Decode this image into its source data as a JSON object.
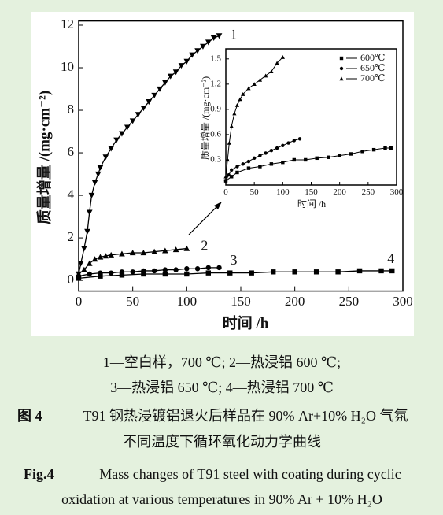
{
  "chart_data": [
    {
      "type": "line",
      "xlabel": "时间 /h",
      "ylabel": "质量增量 /(mg·cm⁻²)",
      "xlim": [
        0,
        300
      ],
      "ylim": [
        -0.5,
        12.2
      ],
      "xticks": [
        0,
        50,
        100,
        150,
        200,
        250,
        300
      ],
      "yticks": [
        0,
        2,
        4,
        6,
        8,
        10,
        12
      ],
      "series": [
        {
          "name": "1",
          "color": "#000000",
          "marker": "triangle-down",
          "x": [
            0,
            2,
            5,
            8,
            10,
            12,
            15,
            18,
            20,
            25,
            30,
            35,
            40,
            45,
            50,
            55,
            60,
            65,
            70,
            75,
            80,
            85,
            90,
            95,
            100,
            105,
            110,
            115,
            120,
            125,
            130
          ],
          "values": [
            0.3,
            0.8,
            1.5,
            2.3,
            3.2,
            4.0,
            4.6,
            5.0,
            5.3,
            5.8,
            6.2,
            6.6,
            6.9,
            7.2,
            7.5,
            7.8,
            8.1,
            8.4,
            8.7,
            9.0,
            9.3,
            9.6,
            9.8,
            10.1,
            10.3,
            10.6,
            10.8,
            11.0,
            11.2,
            11.4,
            11.5
          ]
        },
        {
          "name": "2",
          "color": "#000000",
          "marker": "triangle-up",
          "x": [
            0,
            5,
            10,
            15,
            20,
            25,
            30,
            40,
            50,
            60,
            70,
            80,
            90,
            100
          ],
          "values": [
            0.3,
            0.5,
            0.8,
            1.0,
            1.1,
            1.15,
            1.2,
            1.25,
            1.3,
            1.3,
            1.35,
            1.4,
            1.45,
            1.5
          ]
        },
        {
          "name": "3",
          "color": "#000000",
          "marker": "circle",
          "x": [
            0,
            10,
            20,
            30,
            40,
            50,
            60,
            70,
            80,
            90,
            100,
            110,
            120,
            130
          ],
          "values": [
            0.2,
            0.3,
            0.35,
            0.35,
            0.4,
            0.4,
            0.45,
            0.45,
            0.5,
            0.5,
            0.55,
            0.55,
            0.6,
            0.6
          ]
        },
        {
          "name": "4",
          "color": "#000000",
          "marker": "square",
          "x": [
            0,
            20,
            40,
            60,
            80,
            100,
            120,
            140,
            160,
            180,
            200,
            220,
            240,
            260,
            280,
            290
          ],
          "values": [
            0.1,
            0.2,
            0.25,
            0.3,
            0.3,
            0.3,
            0.35,
            0.35,
            0.35,
            0.4,
            0.4,
            0.4,
            0.4,
            0.45,
            0.45,
            0.45
          ]
        }
      ]
    },
    {
      "type": "line",
      "xlabel": "时间 /h",
      "ylabel": "质量增量 /(mg·cm⁻²)",
      "xlim": [
        0,
        300
      ],
      "ylim": [
        0,
        1.62
      ],
      "xticks": [
        0,
        50,
        100,
        150,
        200,
        250,
        300
      ],
      "yticks": [
        0.3,
        0.6,
        0.9,
        1.2,
        1.5
      ],
      "legend": "upper right",
      "series": [
        {
          "name": "600℃",
          "color": "#000000",
          "marker": "square",
          "x": [
            0,
            10,
            20,
            40,
            60,
            80,
            100,
            120,
            140,
            160,
            180,
            200,
            220,
            240,
            260,
            280,
            290
          ],
          "values": [
            0.05,
            0.1,
            0.15,
            0.2,
            0.22,
            0.25,
            0.27,
            0.3,
            0.3,
            0.32,
            0.33,
            0.35,
            0.37,
            0.4,
            0.42,
            0.44,
            0.44
          ]
        },
        {
          "name": "650℃",
          "color": "#000000",
          "marker": "circle",
          "x": [
            0,
            5,
            10,
            20,
            30,
            40,
            50,
            60,
            70,
            80,
            90,
            100,
            110,
            120,
            130
          ],
          "values": [
            0.05,
            0.12,
            0.18,
            0.22,
            0.25,
            0.28,
            0.32,
            0.35,
            0.38,
            0.41,
            0.44,
            0.47,
            0.5,
            0.53,
            0.55
          ]
        },
        {
          "name": "700℃",
          "color": "#000000",
          "marker": "triangle-up",
          "x": [
            0,
            3,
            6,
            10,
            15,
            20,
            25,
            30,
            40,
            50,
            60,
            70,
            80,
            90,
            100
          ],
          "values": [
            0.1,
            0.3,
            0.5,
            0.7,
            0.85,
            0.95,
            1.02,
            1.08,
            1.15,
            1.2,
            1.25,
            1.3,
            1.35,
            1.45,
            1.52
          ]
        }
      ]
    }
  ],
  "caption": {
    "legend_lines": [
      "1—空白样，700 ℃; 2—热浸铝 600 ℃;",
      "3—热浸铝 650 ℃; 4—热浸铝 700 ℃"
    ],
    "label_cn": "图 4",
    "title_cn": [
      "T91 钢热浸镀铝退火后样品在 90% Ar+10% H₂O 气氛",
      "不同温度下循环氧化动力学曲线"
    ],
    "label_en": "Fig.4",
    "title_en": [
      "Mass changes of T91 steel with coating during cyclic",
      "oxidation at various temperatures in 90% Ar + 10% H₂O"
    ]
  }
}
